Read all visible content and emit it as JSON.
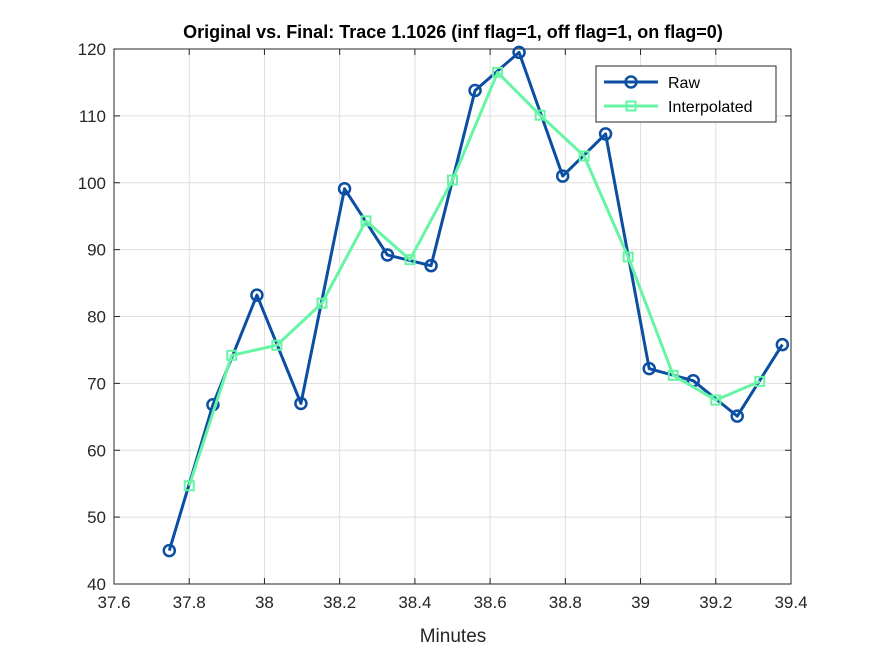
{
  "chart_data": {
    "type": "line",
    "title": "Original vs. Final: Trace 1.1026 (inf flag=1, off flag=1, on flag=0)",
    "xlabel": "Minutes",
    "ylabel": "",
    "xlim": [
      37.6,
      39.4
    ],
    "ylim": [
      40,
      120
    ],
    "xticks": [
      37.6,
      37.8,
      38,
      38.2,
      38.4,
      38.6,
      38.8,
      39,
      39.2,
      39.4
    ],
    "xtick_labels": [
      "37.6",
      "37.8",
      "38",
      "38.2",
      "38.4",
      "38.6",
      "38.8",
      "39",
      "39.2",
      "39.4"
    ],
    "yticks": [
      40,
      50,
      60,
      70,
      80,
      90,
      100,
      110,
      120
    ],
    "ytick_labels": [
      "40",
      "50",
      "60",
      "70",
      "80",
      "90",
      "100",
      "110",
      "120"
    ],
    "grid": true,
    "legend_position": "top-right",
    "series": [
      {
        "name": "Raw",
        "color": "#0b4ea2",
        "marker": "circle",
        "x": [
          37.747,
          37.863,
          37.98,
          38.097,
          38.213,
          38.327,
          38.443,
          38.56,
          38.677,
          38.793,
          38.907,
          39.023,
          39.14,
          39.257,
          39.377
        ],
        "y": [
          45.0,
          66.8,
          83.2,
          67.0,
          99.1,
          89.2,
          87.6,
          113.8,
          119.5,
          101.0,
          107.3,
          72.2,
          70.4,
          65.1,
          75.8
        ]
      },
      {
        "name": "Interpolated",
        "color": "#66f5a5",
        "marker": "square",
        "x": [
          37.8,
          37.913,
          38.033,
          38.153,
          38.27,
          38.387,
          38.5,
          38.62,
          38.733,
          38.85,
          38.967,
          39.087,
          39.2,
          39.317
        ],
        "y": [
          54.7,
          74.2,
          75.7,
          82.0,
          94.3,
          88.5,
          100.4,
          116.5,
          110.1,
          104.0,
          88.9,
          71.2,
          67.5,
          70.3
        ]
      }
    ]
  }
}
